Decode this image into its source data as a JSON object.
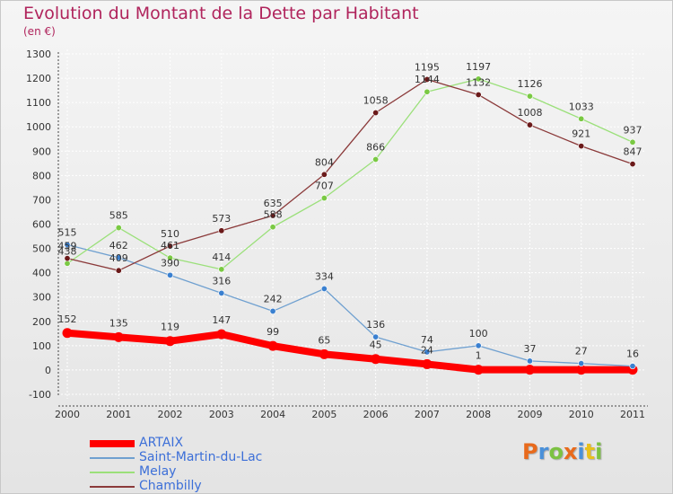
{
  "title": "Evolution du Montant de la Dette par Habitant",
  "unit_label": "(en €)",
  "logo": {
    "text": "Proxiti",
    "letters": [
      {
        "ch": "P",
        "color": "#e86a1c"
      },
      {
        "ch": "r",
        "color": "#4a90d9"
      },
      {
        "ch": "o",
        "color": "#7cc242"
      },
      {
        "ch": "x",
        "color": "#e86a1c"
      },
      {
        "ch": "i",
        "color": "#4a90d9"
      },
      {
        "ch": "t",
        "color": "#e8c01c"
      },
      {
        "ch": "i",
        "color": "#7cc242"
      }
    ]
  },
  "chart_data": {
    "type": "line",
    "title": "Evolution du Montant de la Dette par Habitant",
    "x": [
      "2000",
      "2001",
      "2002",
      "2003",
      "2004",
      "2005",
      "2006",
      "2007",
      "2008",
      "2009",
      "2010",
      "2011"
    ],
    "ylim": [
      -100,
      1300
    ],
    "yticks": [
      -100,
      0,
      100,
      200,
      300,
      400,
      500,
      600,
      700,
      800,
      900,
      1000,
      1100,
      1200,
      1300
    ],
    "grid": true,
    "legend_position": "bottom-left",
    "series": [
      {
        "name": "ARTAIX",
        "color": "#ff0000",
        "marker": "#ff0000",
        "width": 8,
        "values": [
          152,
          135,
          119,
          147,
          99,
          65,
          45,
          24,
          1,
          1,
          1,
          1
        ],
        "labels": [
          "152",
          "135",
          "119",
          "147",
          "99",
          "65",
          "45",
          "24",
          "1",
          "",
          "",
          ""
        ]
      },
      {
        "name": "Saint-Martin-du-Lac",
        "color": "#6fa0d0",
        "marker": "#3a80d0",
        "width": 1.3,
        "values": [
          515,
          462,
          390,
          316,
          242,
          334,
          136,
          74,
          100,
          37,
          27,
          16
        ],
        "labels": [
          "515",
          "462",
          "390",
          "316",
          "242",
          "334",
          "136",
          "74",
          "100",
          "37",
          "27",
          "16"
        ]
      },
      {
        "name": "Melay",
        "color": "#9be07a",
        "marker": "#7ac943",
        "width": 1.3,
        "values": [
          438,
          585,
          461,
          414,
          588,
          707,
          866,
          1144,
          1197,
          1126,
          1033,
          937
        ],
        "labels": [
          "438",
          "585",
          "461",
          "414",
          "588",
          "707",
          "866",
          "1144",
          "1197",
          "1126",
          "1033",
          "937"
        ]
      },
      {
        "name": "Chambilly",
        "color": "#8b3a3a",
        "marker": "#6b1a1a",
        "width": 1.3,
        "values": [
          459,
          409,
          510,
          573,
          635,
          804,
          1058,
          1195,
          1132,
          1008,
          921,
          847
        ],
        "labels": [
          "459",
          "409",
          "510",
          "573",
          "635",
          "804",
          "1058",
          "1195",
          "1132",
          "1008",
          "921",
          "847"
        ]
      }
    ]
  }
}
